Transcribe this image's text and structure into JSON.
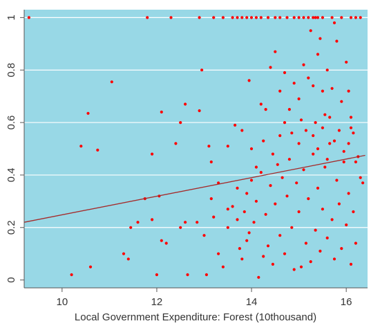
{
  "chart_data": {
    "type": "scatter",
    "title": "",
    "xlabel": "Local Government Expenditure: Forest (10thousand)",
    "ylabel": "",
    "xlim": [
      9.2,
      16.45
    ],
    "ylim": [
      -0.03,
      1.03
    ],
    "x_ticks": [
      10,
      12,
      14,
      16
    ],
    "x_tick_labels": [
      "10",
      "12",
      "14",
      "16"
    ],
    "y_ticks": [
      0,
      0.2,
      0.4,
      0.6,
      0.8,
      1
    ],
    "y_tick_labels": [
      "0",
      "0.2",
      "0.4",
      "0.6",
      "0.8",
      "1"
    ],
    "grid": "horizontal",
    "colors": {
      "background": "#98d8e6",
      "points": "#ff0000",
      "fit_line": "#a52a2a",
      "grid": "#ffffff"
    },
    "fit_line": {
      "x": [
        9.2,
        16.4
      ],
      "y": [
        0.22,
        0.475
      ]
    },
    "points": [
      [
        9.3,
        1
      ],
      [
        11.8,
        1
      ],
      [
        12.3,
        1
      ],
      [
        12.9,
        1
      ],
      [
        13.2,
        1
      ],
      [
        13.4,
        1
      ],
      [
        13.6,
        1
      ],
      [
        13.7,
        1
      ],
      [
        13.8,
        1
      ],
      [
        13.9,
        1
      ],
      [
        14.0,
        1
      ],
      [
        14.1,
        1
      ],
      [
        14.2,
        1
      ],
      [
        14.35,
        1
      ],
      [
        14.5,
        1
      ],
      [
        14.6,
        1
      ],
      [
        14.75,
        1
      ],
      [
        14.9,
        1
      ],
      [
        15.0,
        1
      ],
      [
        15.1,
        1
      ],
      [
        15.2,
        1
      ],
      [
        15.3,
        1
      ],
      [
        15.35,
        1
      ],
      [
        15.4,
        1
      ],
      [
        15.5,
        1
      ],
      [
        15.7,
        1
      ],
      [
        15.9,
        1
      ],
      [
        16.1,
        1
      ],
      [
        16.2,
        1
      ],
      [
        16.3,
        1
      ],
      [
        10.4,
        0.51
      ],
      [
        10.55,
        0.635
      ],
      [
        10.75,
        0.495
      ],
      [
        11.05,
        0.755
      ],
      [
        11.9,
        0.48
      ],
      [
        12.1,
        0.64
      ],
      [
        12.4,
        0.52
      ],
      [
        12.5,
        0.6
      ],
      [
        12.6,
        0.67
      ],
      [
        12.9,
        0.645
      ],
      [
        12.95,
        0.8
      ],
      [
        13.1,
        0.51
      ],
      [
        13.15,
        0.45
      ],
      [
        13.5,
        0.51
      ],
      [
        13.65,
        0.59
      ],
      [
        13.8,
        0.57
      ],
      [
        13.95,
        0.76
      ],
      [
        14.2,
        0.67
      ],
      [
        14.3,
        0.65
      ],
      [
        14.4,
        0.81
      ],
      [
        14.5,
        0.87
      ],
      [
        14.6,
        0.72
      ],
      [
        14.7,
        0.79
      ],
      [
        14.8,
        0.65
      ],
      [
        14.9,
        0.75
      ],
      [
        15.0,
        0.69
      ],
      [
        15.1,
        0.82
      ],
      [
        15.2,
        0.77
      ],
      [
        15.25,
        0.95
      ],
      [
        15.3,
        0.74
      ],
      [
        15.35,
        0.6
      ],
      [
        15.4,
        0.86
      ],
      [
        15.45,
        0.92
      ],
      [
        15.5,
        0.72
      ],
      [
        15.55,
        0.63
      ],
      [
        15.6,
        0.8
      ],
      [
        15.7,
        0.73
      ],
      [
        15.75,
        0.98
      ],
      [
        15.8,
        0.91
      ],
      [
        15.9,
        0.68
      ],
      [
        16.0,
        0.83
      ],
      [
        16.05,
        0.72
      ],
      [
        16.1,
        0.62
      ],
      [
        16.15,
        0.56
      ],
      [
        16.2,
        0.45
      ],
      [
        16.3,
        0.39
      ],
      [
        10.2,
        0.02
      ],
      [
        10.6,
        0.05
      ],
      [
        11.3,
        0.1
      ],
      [
        11.4,
        0.08
      ],
      [
        11.45,
        0.2
      ],
      [
        11.6,
        0.22
      ],
      [
        11.75,
        0.31
      ],
      [
        11.9,
        0.23
      ],
      [
        12.0,
        0.02
      ],
      [
        12.05,
        0.32
      ],
      [
        12.1,
        0.15
      ],
      [
        12.2,
        0.14
      ],
      [
        12.5,
        0.2
      ],
      [
        12.6,
        0.22
      ],
      [
        12.65,
        0.02
      ],
      [
        12.85,
        0.22
      ],
      [
        13.0,
        0.17
      ],
      [
        13.05,
        0.02
      ],
      [
        13.15,
        0.31
      ],
      [
        13.2,
        0.24
      ],
      [
        13.3,
        0.1
      ],
      [
        13.4,
        0.05
      ],
      [
        13.5,
        0.2
      ],
      [
        13.6,
        0.28
      ],
      [
        13.7,
        0.35
      ],
      [
        13.75,
        0.12
      ],
      [
        13.8,
        0.08
      ],
      [
        13.85,
        0.26
      ],
      [
        13.9,
        0.33
      ],
      [
        13.95,
        0.18
      ],
      [
        14.0,
        0.38
      ],
      [
        14.05,
        0.22
      ],
      [
        14.1,
        0.3
      ],
      [
        14.15,
        0.01
      ],
      [
        14.2,
        0.41
      ],
      [
        14.25,
        0.09
      ],
      [
        14.3,
        0.25
      ],
      [
        14.35,
        0.13
      ],
      [
        14.4,
        0.36
      ],
      [
        14.45,
        0.06
      ],
      [
        14.5,
        0.29
      ],
      [
        14.55,
        0.44
      ],
      [
        14.6,
        0.17
      ],
      [
        14.65,
        0.39
      ],
      [
        14.7,
        0.1
      ],
      [
        14.75,
        0.32
      ],
      [
        14.8,
        0.46
      ],
      [
        14.85,
        0.2
      ],
      [
        14.9,
        0.04
      ],
      [
        14.95,
        0.37
      ],
      [
        15.0,
        0.26
      ],
      [
        15.05,
        0.05
      ],
      [
        15.1,
        0.42
      ],
      [
        15.15,
        0.14
      ],
      [
        15.2,
        0.31
      ],
      [
        15.25,
        0.07
      ],
      [
        15.3,
        0.48
      ],
      [
        15.35,
        0.19
      ],
      [
        15.4,
        0.35
      ],
      [
        15.45,
        0.11
      ],
      [
        15.5,
        0.27
      ],
      [
        15.55,
        0.43
      ],
      [
        15.6,
        0.16
      ],
      [
        15.65,
        0.52
      ],
      [
        15.7,
        0.23
      ],
      [
        15.75,
        0.08
      ],
      [
        15.8,
        0.38
      ],
      [
        15.85,
        0.29
      ],
      [
        15.9,
        0.12
      ],
      [
        15.95,
        0.45
      ],
      [
        16.0,
        0.21
      ],
      [
        16.05,
        0.33
      ],
      [
        16.1,
        0.06
      ],
      [
        16.15,
        0.26
      ],
      [
        16.2,
        0.14
      ],
      [
        16.35,
        0.37
      ],
      [
        13.3,
        0.37
      ],
      [
        13.5,
        0.27
      ],
      [
        13.7,
        0.23
      ],
      [
        13.9,
        0.15
      ],
      [
        14.0,
        0.5
      ],
      [
        14.1,
        0.43
      ],
      [
        14.25,
        0.53
      ],
      [
        14.45,
        0.48
      ],
      [
        14.6,
        0.55
      ],
      [
        14.7,
        0.6
      ],
      [
        14.85,
        0.56
      ],
      [
        15.0,
        0.52
      ],
      [
        15.05,
        0.61
      ],
      [
        15.15,
        0.57
      ],
      [
        15.3,
        0.55
      ],
      [
        15.4,
        0.5
      ],
      [
        15.5,
        0.58
      ],
      [
        15.6,
        0.46
      ],
      [
        15.65,
        0.62
      ],
      [
        15.75,
        0.53
      ],
      [
        15.85,
        0.57
      ],
      [
        15.95,
        0.49
      ],
      [
        16.05,
        0.52
      ],
      [
        16.1,
        0.58
      ],
      [
        16.25,
        0.47
      ]
    ]
  }
}
